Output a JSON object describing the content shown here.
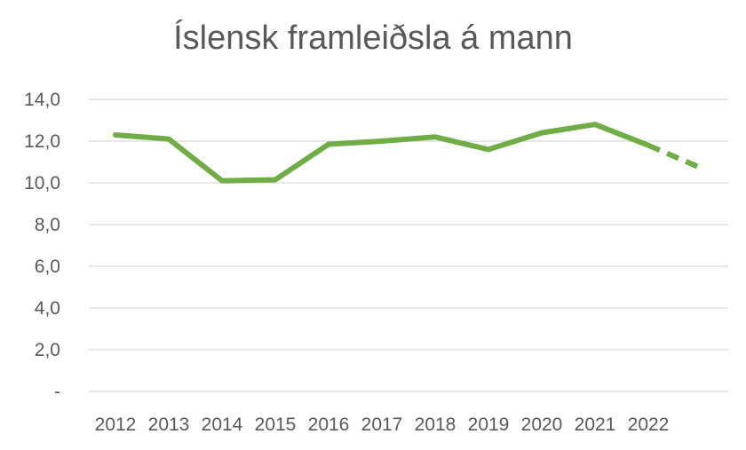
{
  "chart_data": {
    "type": "line",
    "title": "Íslensk framleiðsla á mann",
    "xlabel": "",
    "ylabel": "",
    "categories": [
      "2012",
      "2013",
      "2014",
      "2015",
      "2016",
      "2017",
      "2018",
      "2019",
      "2020",
      "2021",
      "2022",
      ""
    ],
    "series": [
      {
        "values": [
          12.3,
          12.1,
          10.1,
          10.15,
          11.85,
          12.0,
          12.2,
          11.6,
          12.4,
          12.8,
          11.8,
          10.7
        ],
        "color": "#70ad47",
        "dashed_from_index": 10
      }
    ],
    "ylim": [
      0,
      14
    ],
    "yticks": [
      {
        "value": 0,
        "label": "-"
      },
      {
        "value": 2,
        "label": "2,0"
      },
      {
        "value": 4,
        "label": "4,0"
      },
      {
        "value": 6,
        "label": "6,0"
      },
      {
        "value": 8,
        "label": "8,0"
      },
      {
        "value": 10,
        "label": "10,0"
      },
      {
        "value": 12,
        "label": "12,0"
      },
      {
        "value": 14,
        "label": "14,0"
      }
    ],
    "grid": true,
    "gridColor": "#d9d9d9",
    "legend": "none"
  }
}
